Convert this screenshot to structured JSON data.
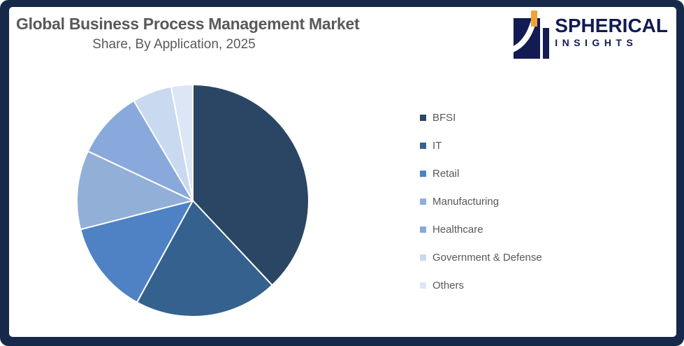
{
  "header": {
    "title": "Global Business Process Management Market",
    "subtitle": "Share, By Application, 2025"
  },
  "logo": {
    "name": "SPHERICAL",
    "tagline": "INSIGHTS"
  },
  "colors": {
    "frame": "#16294A",
    "background": "#FFFFFF",
    "title_text": "#595959",
    "legend_text": "#595959",
    "logo_navy": "#121B52",
    "logo_orange": "#F0A335",
    "slice_border": "#FFFFFF"
  },
  "chart_data": {
    "type": "pie",
    "title": "Global Business Process Management Market",
    "subtitle": "Share, By Application, 2025",
    "labels": [
      "BFSI",
      "IT",
      "Retail",
      "Manufacturing",
      "Healthcare",
      "Government & Defense",
      "Others"
    ],
    "values_pct_est": [
      38,
      20,
      13,
      11,
      9.5,
      5.5,
      3
    ],
    "colors": [
      "#2A4664",
      "#35618F",
      "#4E82C4",
      "#92AFD7",
      "#89A9DC",
      "#C9D9F0",
      "#DCE6F5"
    ],
    "start_angle_deg": 0,
    "direction": "clockwise",
    "slice_border_color": "#FFFFFF",
    "legend_position": "right",
    "data_labels": false
  }
}
